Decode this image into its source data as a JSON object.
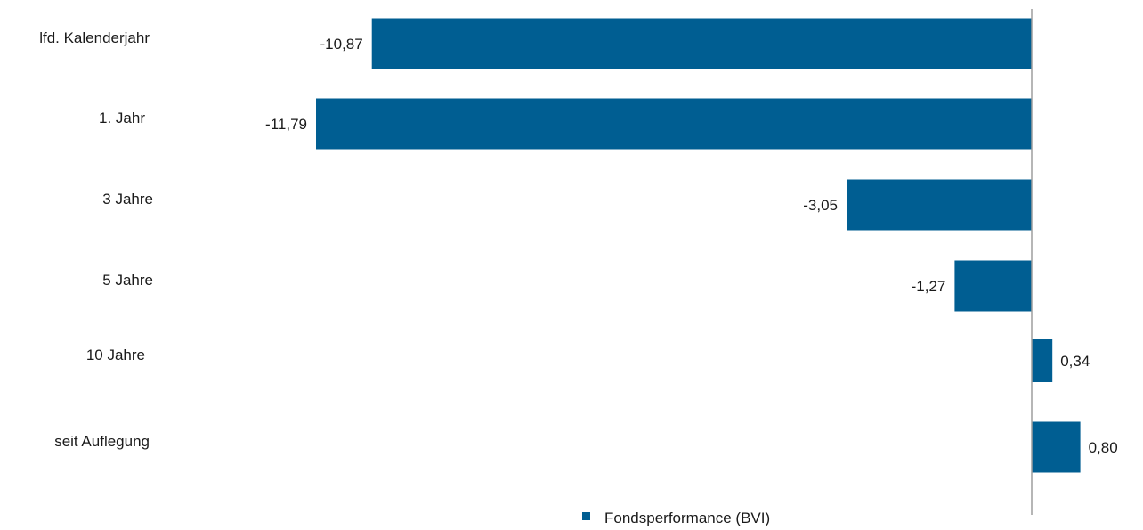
{
  "chart_data": {
    "type": "bar",
    "orientation": "horizontal",
    "categories": [
      "lfd. Kalenderjahr",
      "1. Jahr",
      "3 Jahre",
      "5 Jahre",
      "10 Jahre",
      "seit Auflegung"
    ],
    "series": [
      {
        "name": "Fondsperformance (BVI)",
        "values": [
          -10.87,
          -11.79,
          -3.05,
          -1.27,
          0.34,
          0.8
        ],
        "value_labels": [
          "-10,87",
          "-11,79",
          "-3,05",
          "-1,27",
          "0,34",
          "0,80"
        ],
        "color": "#005e92"
      }
    ],
    "title": "",
    "xlabel": "",
    "ylabel": "",
    "xlim": [
      -13,
      1
    ],
    "grid": false,
    "legend_position": "bottom"
  },
  "colors": {
    "bar": "#005e92",
    "axis": "#9e9e9e",
    "text": "#1a1a1a"
  }
}
